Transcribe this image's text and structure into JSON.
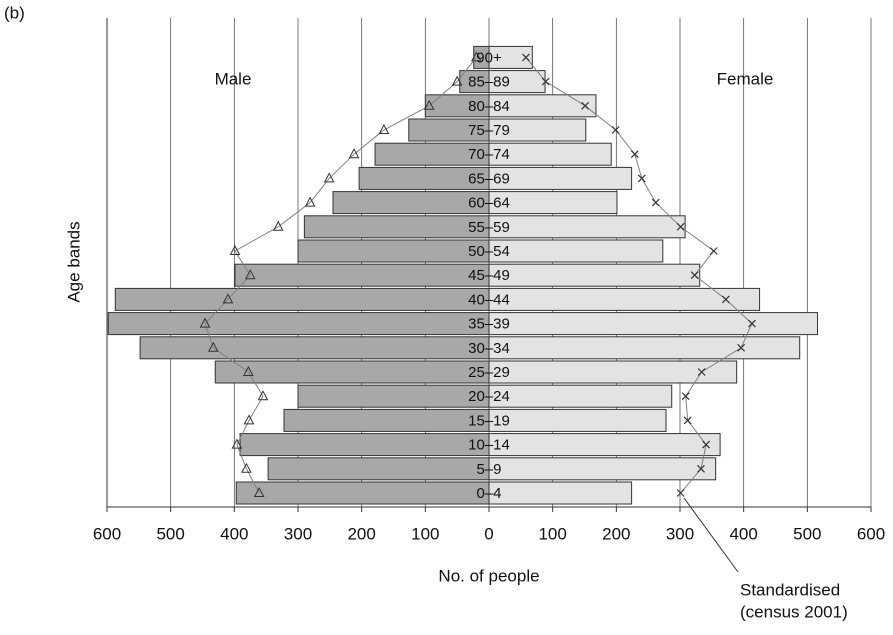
{
  "chart_data": {
    "type": "population-pyramid",
    "label": "(b)",
    "ylabel": "Age bands",
    "xlabel": "No. of people",
    "categories": [
      "0–4",
      "5–9",
      "10–14",
      "15–19",
      "20–24",
      "25–29",
      "30–34",
      "35–39",
      "40–44",
      "45–49",
      "50–54",
      "55–59",
      "60–64",
      "65–69",
      "70–74",
      "75–79",
      "80–84",
      "85–89",
      "90+"
    ],
    "series": [
      {
        "name": "Male",
        "color": "#a8a8a8",
        "side": "left",
        "values": [
          397,
          347,
          391,
          322,
          300,
          430,
          548,
          598,
          587,
          399,
          300,
          290,
          245,
          204,
          179,
          126,
          100,
          46,
          24
        ]
      },
      {
        "name": "Female",
        "color": "#e3e3e3",
        "side": "right",
        "values": [
          224,
          356,
          363,
          278,
          287,
          389,
          488,
          516,
          425,
          331,
          273,
          308,
          201,
          224,
          192,
          152,
          168,
          88,
          68
        ]
      }
    ],
    "standardised": [
      {
        "side": "left",
        "marker": "triangle",
        "color": "#808080",
        "values": [
          361,
          381,
          396,
          377,
          355,
          378,
          433,
          446,
          410,
          375,
          399,
          331,
          281,
          251,
          212,
          165,
          94,
          50,
          20
        ]
      },
      {
        "side": "right",
        "marker": "cross",
        "color": "#808080",
        "values": [
          301,
          333,
          341,
          312,
          309,
          334,
          396,
          413,
          372,
          323,
          353,
          301,
          262,
          240,
          229,
          199,
          151,
          89,
          58
        ]
      }
    ],
    "annotation": [
      "Standardised",
      "(census 2001)"
    ],
    "xlim": [
      -600,
      600
    ],
    "xticks": [
      {
        "value": -600,
        "label": "600"
      },
      {
        "value": -500,
        "label": "500"
      },
      {
        "value": -400,
        "label": "400"
      },
      {
        "value": -300,
        "label": "300"
      },
      {
        "value": -200,
        "label": "200"
      },
      {
        "value": -100,
        "label": "100"
      },
      0,
      100,
      200,
      300,
      400,
      500,
      600
    ],
    "grid": true
  }
}
